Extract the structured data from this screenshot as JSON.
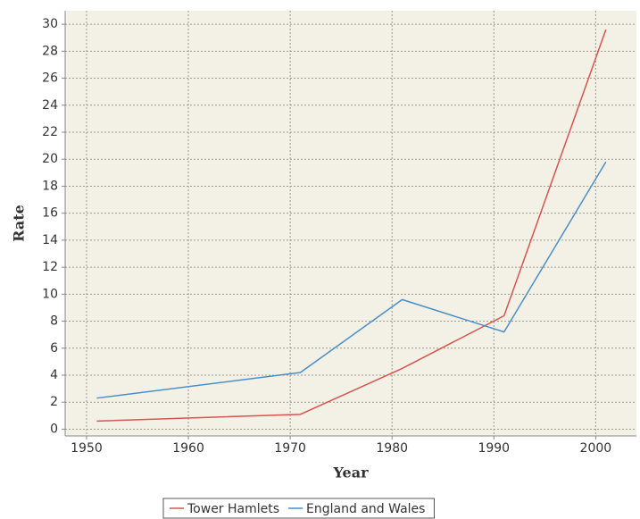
{
  "chart_data": {
    "type": "line",
    "x_label": "Year",
    "y_label": "Rate",
    "x": [
      1951,
      1971,
      1981,
      1991,
      2001
    ],
    "series": [
      {
        "name": "Tower Hamlets",
        "color": "#d9534f",
        "values": [
          0.6,
          1.1,
          4.5,
          8.4,
          29.6
        ]
      },
      {
        "name": "England and Wales",
        "color": "#4a8fc7",
        "values": [
          2.3,
          4.2,
          9.6,
          7.2,
          19.8
        ]
      }
    ],
    "xlim": [
      1947.9,
      2004
    ],
    "xticks": [
      1950,
      1960,
      1970,
      1980,
      1990,
      2000
    ],
    "ylim": [
      -0.5,
      31
    ],
    "yticks": [
      0,
      2,
      4,
      6,
      8,
      10,
      12,
      14,
      16,
      18,
      20,
      22,
      24,
      26,
      28,
      30
    ],
    "grid": true,
    "legend": "bottom"
  }
}
